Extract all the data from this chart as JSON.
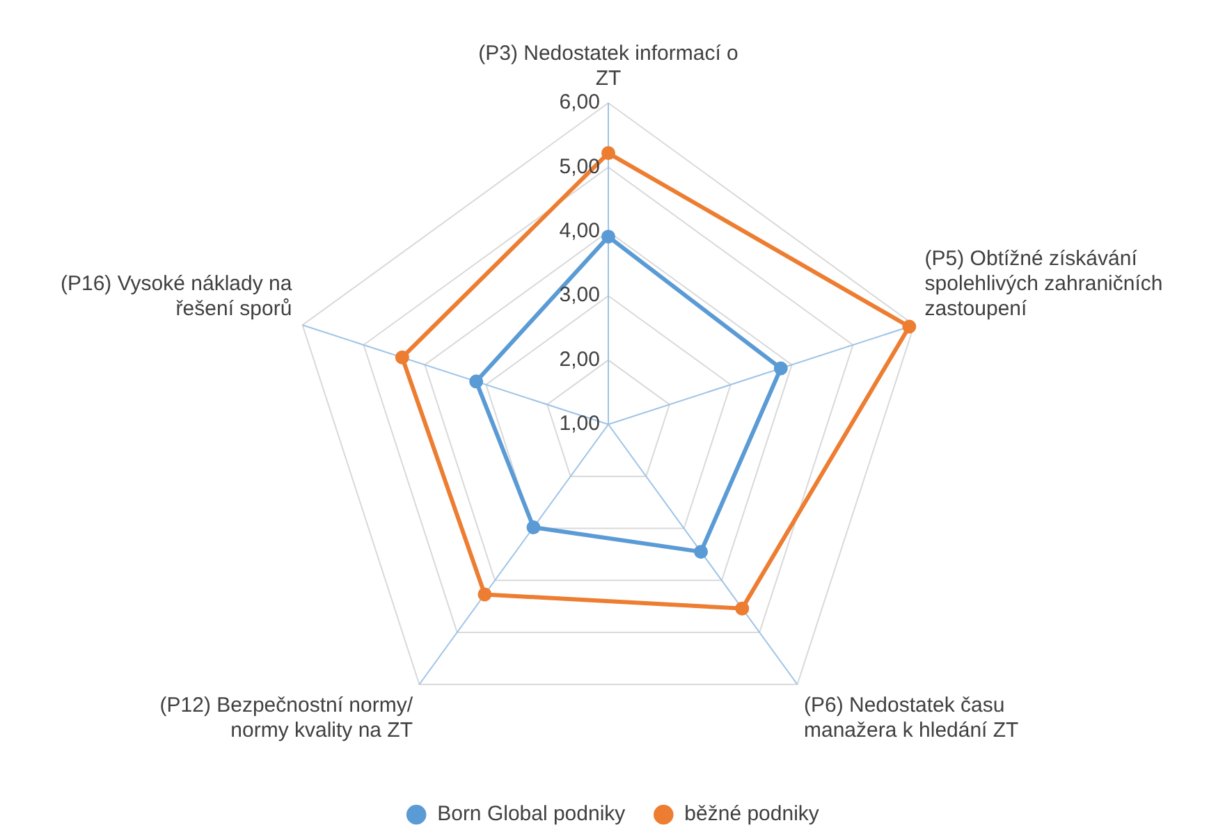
{
  "chart_data": {
    "type": "radar",
    "categories": [
      "(P3) Nedostatek informací o ZT",
      "(P5) Obtížné získávání spolehlivých zahraničních zastoupení",
      "(P6) Nedostatek času manažera k hledání ZT",
      "(P12) Bezpečnostní normy/ normy kvality na ZT",
      "(P16) Vysoké náklady na řešení sporů"
    ],
    "series": [
      {
        "name": "Born Global podniky",
        "color": "#5b9bd5",
        "values": [
          3.92,
          3.82,
          3.45,
          2.98,
          3.16
        ]
      },
      {
        "name": "běžné podniky",
        "color": "#ed7d31",
        "values": [
          5.22,
          5.92,
          4.54,
          4.27,
          4.37
        ]
      }
    ],
    "ylim": [
      1,
      6
    ],
    "yticks": [
      {
        "value": 1,
        "label": "1,00"
      },
      {
        "value": 2,
        "label": "2,00"
      },
      {
        "value": 3,
        "label": "3,00"
      },
      {
        "value": 4,
        "label": "4,00"
      },
      {
        "value": 5,
        "label": "5,00"
      },
      {
        "value": 6,
        "label": "6,00"
      }
    ],
    "grid": true,
    "legend": "bottom",
    "marker": "circle",
    "line_style": "solid"
  }
}
